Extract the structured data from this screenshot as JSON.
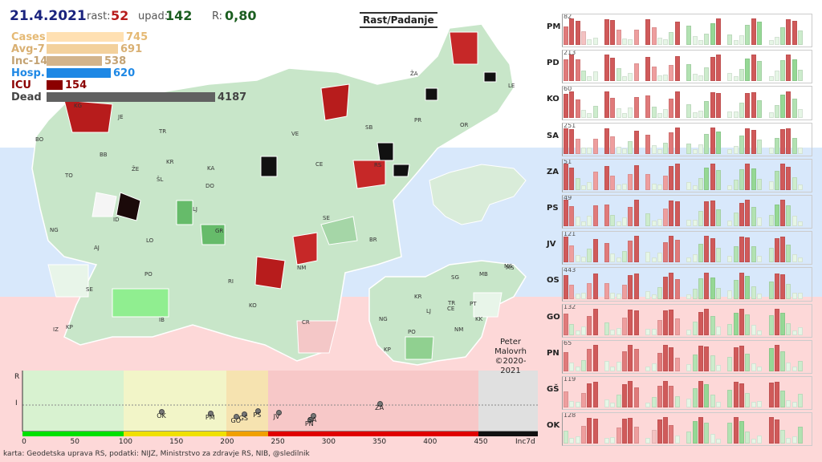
{
  "header": {
    "date": "21.4.2021",
    "rast_label": "rast:",
    "rast_value": "52",
    "upad_label": "upad:",
    "upad_value": "142",
    "r_label": "R:",
    "r_value": "0,80",
    "toggle_label": "Rast/Padanje"
  },
  "stats": [
    {
      "label": "Cases",
      "value": 745,
      "display": "745",
      "color": "#ffe0b2",
      "textcolor": "#e5b973"
    },
    {
      "label": "Avg-7",
      "value": 691,
      "display": "691",
      "color": "#f3d19c",
      "textcolor": "#d9b073"
    },
    {
      "label": "Inc-14",
      "value": 538,
      "display": "538",
      "color": "#d2b48c",
      "textcolor": "#c4a374"
    },
    {
      "label": "Hosp.",
      "value": 620,
      "display": "620",
      "color": "#1e88e5",
      "textcolor": "#1e88e5"
    },
    {
      "label": "ICU",
      "value": 154,
      "display": "154",
      "color": "#8b0000",
      "textcolor": "#8b0000"
    },
    {
      "label": "Dead",
      "value": 4187,
      "display": "4187",
      "color": "#616161",
      "textcolor": "#444444"
    }
  ],
  "map_labels": [
    "KG",
    "JE",
    "BO",
    "TR",
    "BB",
    "KR",
    "ŠL",
    "ŽE",
    "TO",
    "DO",
    "KA",
    "ID",
    "LJ",
    "NG",
    "LO",
    "GR",
    "AJ",
    "PO",
    "RI",
    "SE",
    "KO",
    "IB",
    "IZ",
    "KP",
    "CR",
    "NM",
    "BR",
    "SE",
    "CE",
    "VE",
    "SB",
    "RS",
    "PR",
    "OR",
    "LE",
    "ŽA",
    "MS"
  ],
  "inset_labels": [
    "MS",
    "SG",
    "MB",
    "KR",
    "LJ",
    "CE",
    "TR",
    "PT",
    "NG",
    "PO",
    "NM",
    "KK",
    "KP"
  ],
  "credit": {
    "line1": "Peter",
    "line2": "Malovrh",
    "line3": "©2020-2021"
  },
  "regions": [
    {
      "code": "PM",
      "max": "82"
    },
    {
      "code": "PD",
      "max": "213"
    },
    {
      "code": "KO",
      "max": "60"
    },
    {
      "code": "SA",
      "max": "251"
    },
    {
      "code": "ZA",
      "max": "51"
    },
    {
      "code": "PS",
      "max": "49"
    },
    {
      "code": "JV",
      "max": "121"
    },
    {
      "code": "OS",
      "max": "443"
    },
    {
      "code": "GO",
      "max": "132"
    },
    {
      "code": "PN",
      "max": "65"
    },
    {
      "code": "GŠ",
      "max": "119"
    },
    {
      "code": "OK",
      "max": "128"
    }
  ],
  "bottom_chart": {
    "y_labels": [
      "R",
      "I"
    ],
    "x_ticks": [
      "0",
      "50",
      "100",
      "150",
      "200",
      "250",
      "300",
      "350",
      "400",
      "450",
      "Inc7d"
    ],
    "points": [
      {
        "label": "OK",
        "inc": 137,
        "r": 0.0
      },
      {
        "label": "PM",
        "inc": 185,
        "r": 0.0
      },
      {
        "label": "GO",
        "inc": 210,
        "r": 0.0
      },
      {
        "label": "GŠ",
        "inc": 218,
        "r": 0.0
      },
      {
        "label": "PS",
        "inc": 232,
        "r": 0.0
      },
      {
        "label": "JV",
        "inc": 252,
        "r": 0.0
      },
      {
        "label": "PN",
        "inc": 283,
        "r": 0.0
      },
      {
        "label": "SA",
        "inc": 286,
        "r": 0.0
      },
      {
        "label": "ZA",
        "inc": 352,
        "r": 0.0
      }
    ],
    "colors": [
      "#00e000",
      "#f0e000",
      "#f0a000",
      "#e00000",
      "#111111"
    ]
  },
  "footer": "karta: Geodetska uprava RS,  podatki: NIJZ, Ministrstvo za zdravje RS, NIB, @sledilnik"
}
